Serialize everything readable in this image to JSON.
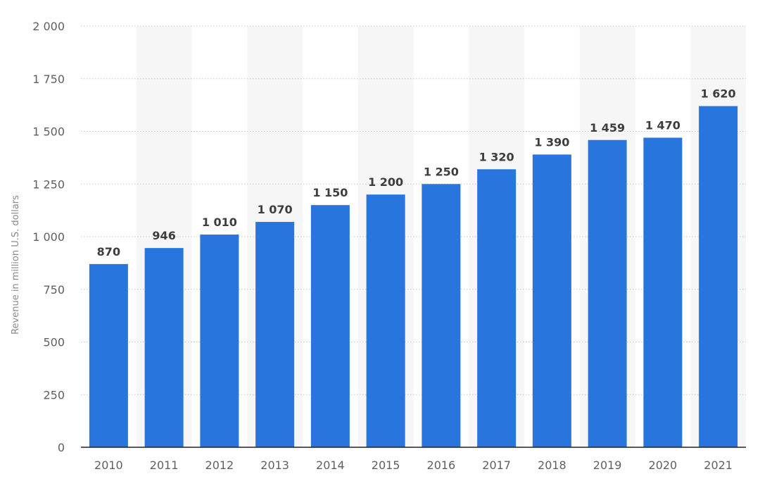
{
  "chart_data": {
    "type": "bar",
    "title": "",
    "xlabel": "",
    "ylabel": "Revenue in million U.S. dollars",
    "categories": [
      "2010",
      "2011",
      "2012",
      "2013",
      "2014",
      "2015",
      "2016",
      "2017",
      "2018",
      "2019",
      "2020",
      "2021"
    ],
    "values": [
      870,
      946,
      1010,
      1070,
      1150,
      1200,
      1250,
      1320,
      1390,
      1459,
      1470,
      1620
    ],
    "value_labels": [
      "870",
      "946",
      "1 010",
      "1 070",
      "1 150",
      "1 200",
      "1 250",
      "1 320",
      "1 390",
      "1 459",
      "1 470",
      "1 620"
    ],
    "ylim": [
      0,
      2000
    ],
    "yticks": [
      0,
      250,
      500,
      750,
      1000,
      1250,
      1500,
      1750,
      2000
    ],
    "ytick_labels": [
      "0",
      "250",
      "500",
      "750",
      "1 000",
      "1 250",
      "1 500",
      "1 750",
      "2 000"
    ],
    "grid": true,
    "grid_style": "dotted horizontal lines with alternating light column bands",
    "legend": "none",
    "colors": {
      "bar": "#2876dd",
      "band": "#f6f6f6",
      "grid": "#c9c9c9",
      "axis": "#222222"
    }
  }
}
